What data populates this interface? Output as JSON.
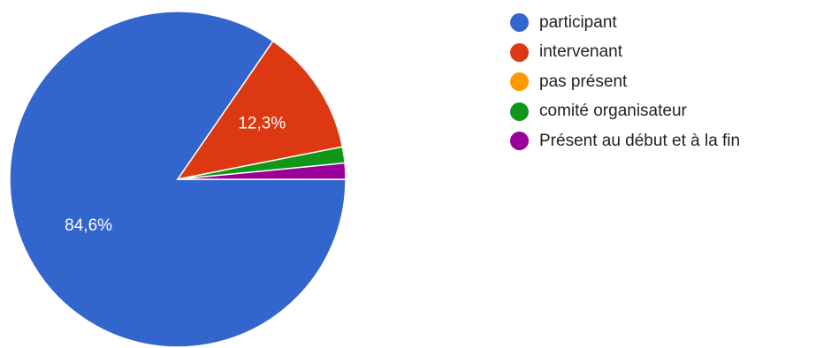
{
  "chart_data": {
    "type": "pie",
    "series": [
      {
        "name": "participant",
        "value": 84.6,
        "label": "84,6%",
        "color": "#3366cc"
      },
      {
        "name": "intervenant",
        "value": 12.3,
        "label": "12,3%",
        "color": "#dc3912"
      },
      {
        "name": "pas présent",
        "value": 0,
        "label": "",
        "color": "#ff9900"
      },
      {
        "name": "comité organisateur",
        "value": 1.55,
        "label": "",
        "color": "#109618"
      },
      {
        "name": "Présent au début et à la fin",
        "value": 1.55,
        "label": "",
        "color": "#990099"
      }
    ],
    "legend_position": "right"
  }
}
